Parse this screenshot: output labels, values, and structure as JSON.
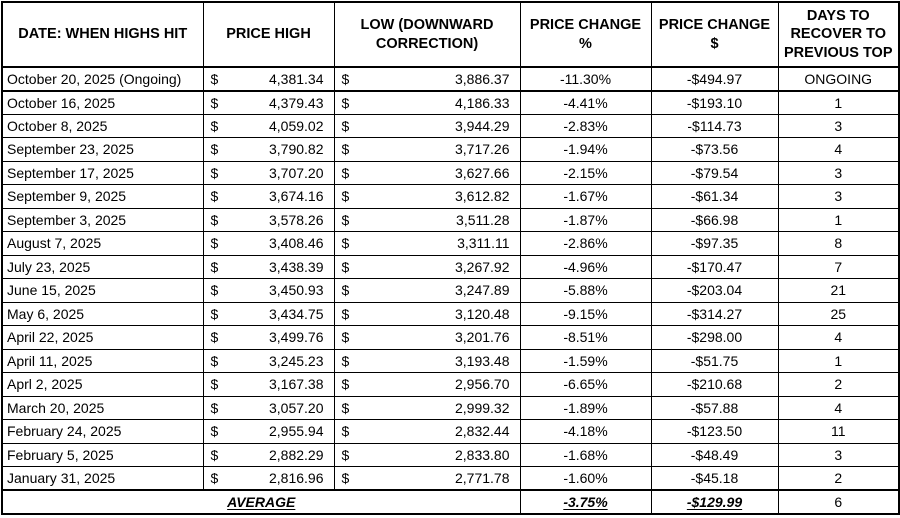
{
  "table": {
    "headers": [
      "DATE: WHEN HIGHS HIT",
      "PRICE HIGH",
      "LOW (DOWNWARD CORRECTION)",
      "PRICE CHANGE %",
      "PRICE CHANGE $",
      "DAYS TO RECOVER TO PREVIOUS TOP"
    ],
    "currency_symbol": "$",
    "rows": [
      {
        "date": "October 20, 2025 (Ongoing)",
        "high": "4,381.34",
        "low": "3,886.37",
        "pct": "-11.30%",
        "usd": "-$494.97",
        "days": "ONGOING"
      },
      {
        "date": "October 16, 2025",
        "high": "4,379.43",
        "low": "4,186.33",
        "pct": "-4.41%",
        "usd": "-$193.10",
        "days": "1"
      },
      {
        "date": "October 8, 2025",
        "high": "4,059.02",
        "low": "3,944.29",
        "pct": "-2.83%",
        "usd": "-$114.73",
        "days": "3"
      },
      {
        "date": "September 23, 2025",
        "high": "3,790.82",
        "low": "3,717.26",
        "pct": "-1.94%",
        "usd": "-$73.56",
        "days": "4"
      },
      {
        "date": "September 17, 2025",
        "high": "3,707.20",
        "low": "3,627.66",
        "pct": "-2.15%",
        "usd": "-$79.54",
        "days": "3"
      },
      {
        "date": "September 9, 2025",
        "high": "3,674.16",
        "low": "3,612.82",
        "pct": "-1.67%",
        "usd": "-$61.34",
        "days": "3"
      },
      {
        "date": "September 3, 2025",
        "high": "3,578.26",
        "low": "3,511.28",
        "pct": "-1.87%",
        "usd": "-$66.98",
        "days": "1"
      },
      {
        "date": "August 7, 2025",
        "high": "3,408.46",
        "low": "3,311.11",
        "pct": "-2.86%",
        "usd": "-$97.35",
        "days": "8"
      },
      {
        "date": "July 23, 2025",
        "high": "3,438.39",
        "low": "3,267.92",
        "pct": "-4.96%",
        "usd": "-$170.47",
        "days": "7"
      },
      {
        "date": "June 15, 2025",
        "high": "3,450.93",
        "low": "3,247.89",
        "pct": "-5.88%",
        "usd": "-$203.04",
        "days": "21"
      },
      {
        "date": "May 6, 2025",
        "high": "3,434.75",
        "low": "3,120.48",
        "pct": "-9.15%",
        "usd": "-$314.27",
        "days": "25"
      },
      {
        "date": "April 22, 2025",
        "high": "3,499.76",
        "low": "3,201.76",
        "pct": "-8.51%",
        "usd": "-$298.00",
        "days": "4"
      },
      {
        "date": "April 11, 2025",
        "high": "3,245.23",
        "low": "3,193.48",
        "pct": "-1.59%",
        "usd": "-$51.75",
        "days": "1"
      },
      {
        "date": "Aprl 2, 2025",
        "high": "3,167.38",
        "low": "2,956.70",
        "pct": "-6.65%",
        "usd": "-$210.68",
        "days": "2"
      },
      {
        "date": "March 20, 2025",
        "high": "3,057.20",
        "low": "2,999.32",
        "pct": "-1.89%",
        "usd": "-$57.88",
        "days": "4"
      },
      {
        "date": "February 24, 2025",
        "high": "2,955.94",
        "low": "2,832.44",
        "pct": "-4.18%",
        "usd": "-$123.50",
        "days": "11"
      },
      {
        "date": "February 5, 2025",
        "high": "2,882.29",
        "low": "2,833.80",
        "pct": "-1.68%",
        "usd": "-$48.49",
        "days": "3"
      },
      {
        "date": "January 31, 2025",
        "high": "2,816.96",
        "low": "2,771.78",
        "pct": "-1.60%",
        "usd": "-$45.18",
        "days": "2"
      }
    ],
    "average": {
      "label": "AVERAGE",
      "pct": "-3.75%",
      "usd": "-$129.99",
      "days": "6"
    }
  }
}
